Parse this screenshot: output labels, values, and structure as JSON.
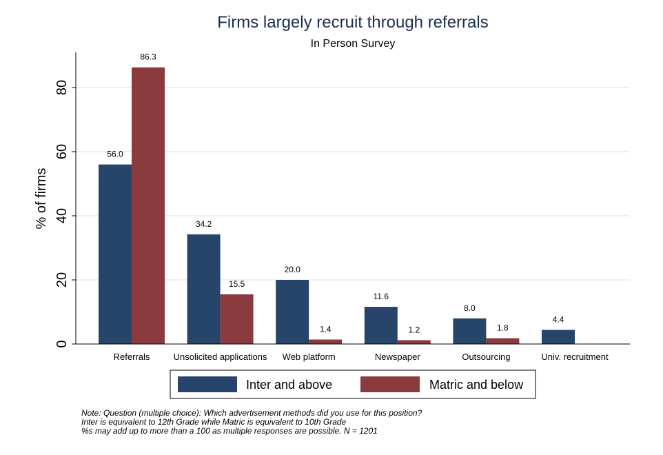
{
  "chart_data": {
    "type": "bar",
    "title": "Firms largely recruit through referrals",
    "subtitle": "In Person Survey",
    "xlabel": "",
    "ylabel": "% of firms",
    "ylim": [
      0,
      90
    ],
    "yticks": [
      0,
      20,
      40,
      60,
      80
    ],
    "grid": true,
    "legend_position": "bottom",
    "categories": [
      "Referrals",
      "Unsolicited applications",
      "Web platform",
      "Newspaper",
      "Outsourcing",
      "Univ. recruitment"
    ],
    "series": [
      {
        "name": "Inter and above",
        "color": "#27456a",
        "values": [
          56.0,
          34.2,
          20.0,
          11.6,
          8.0,
          4.4
        ],
        "labels": [
          "56.0",
          "34.2",
          "20.0",
          "11.6",
          "8.0",
          "4.4"
        ]
      },
      {
        "name": "Matric and below",
        "color": "#8b3a3e",
        "values": [
          86.3,
          15.5,
          1.4,
          1.2,
          1.8,
          null
        ],
        "labels": [
          "86.3",
          "15.5",
          "1.4",
          "1.2",
          "1.8",
          ""
        ]
      }
    ],
    "notes": [
      "Note: Question (multiple choice): Which advertisement methods did you use for this position?",
      "Inter is equivalent to 12th Grade while Matric is equivalent to 10th Grade",
      "%s may add up to more than a 100 as multiple responses are possible. N = 1201"
    ]
  }
}
